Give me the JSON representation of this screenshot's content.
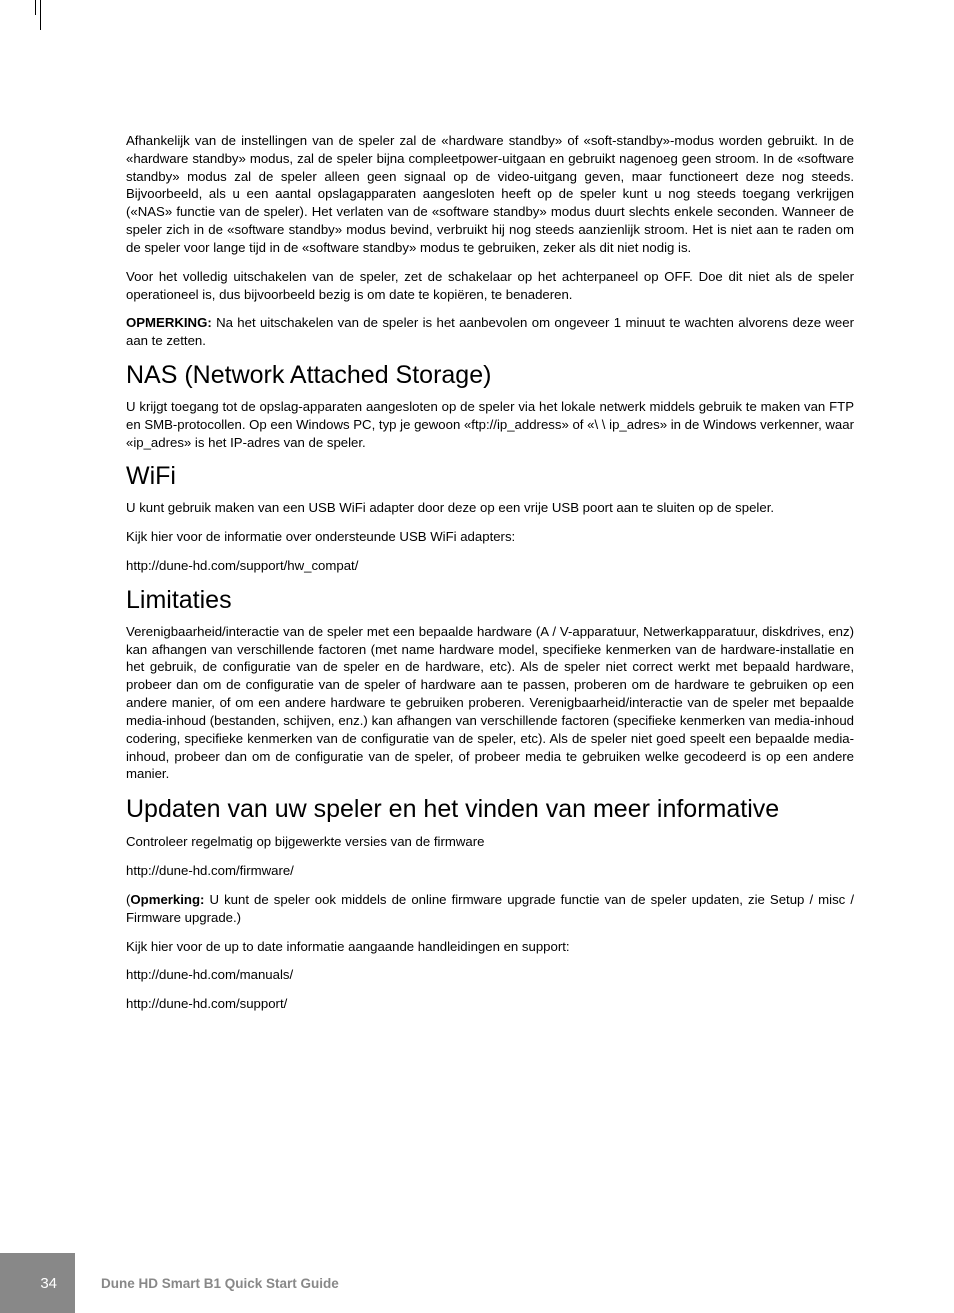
{
  "body": {
    "p1": "Afhankelijk van de instellingen van de speler zal de «hardware standby» of «soft-standby»-modus worden gebruikt. In de «hardware standby» modus, zal de speler bijna compleetpower-uitgaan en gebruikt nagenoeg geen stroom. In de «software standby» modus zal de speler alleen geen signaal op de video-uitgang geven, maar functioneert deze nog steeds. Bijvoorbeeld, als u een aantal opslagapparaten aangesloten heeft op de speler kunt u nog steeds toegang verkrijgen («NAS» functie van de speler). Het verlaten van de «software standby» modus duurt slechts enkele seconden. Wanneer de speler zich in de «software standby» modus bevind, verbruikt hij nog steeds aanzienlijk stroom. Het is niet aan te raden om de speler voor lange tijd in de «software standby» modus te gebruiken, zeker als dit niet nodig is.",
    "p2": "Voor het volledig uitschakelen van de speler, zet de schakelaar op het achterpaneel op OFF. Doe dit niet als de speler operationeel is, dus bijvoorbeeld bezig is om date te kopiëren, te benaderen.",
    "p3_label": "OPMERKING:",
    "p3_rest": " Na het uitschakelen van de speler is het aanbevolen om ongeveer 1 minuut te wachten alvorens deze weer aan te zetten.",
    "h_nas": "NAS (Network Attached Storage)",
    "p_nas": "U krijgt toegang tot de opslag-apparaten aangesloten op de speler via het lokale netwerk middels gebruik te maken van FTP en SMB-protocollen. Op een Windows PC, typ je gewoon «ftp://ip_address» of «\\ \\ ip_adres» in de Windows verkenner, waar «ip_adres» is het IP-adres van de speler.",
    "h_wifi": "WiFi",
    "p_wifi1": "U kunt gebruik maken van een USB WiFi adapter door deze op een vrije USB poort aan te sluiten op de speler.",
    "p_wifi2": "Kijk hier voor de informatie over ondersteunde USB WiFi adapters:",
    "p_wifi3": "http://dune-hd.com/support/hw_compat/",
    "h_lim": "Limitaties",
    "p_lim": "Verenigbaarheid/interactie van de speler met een bepaalde hardware (A / V-apparatuur, Netwerkapparatuur, diskdrives, enz) kan afhangen van verschillende factoren (met name hardware model, specifieke kenmerken van de hardware-installatie en het gebruik, de configuratie van de speler en de hardware, etc). Als de speler niet correct werkt met bepaald hardware, probeer dan om de configuratie van de speler of hardware aan te passen, proberen om de hardware te gebruiken op een andere manier, of om een andere hardware te gebruiken proberen. Verenigbaarheid/interactie van de speler met bepaalde media-inhoud (bestanden, schijven, enz.) kan afhangen van verschillende factoren (specifieke kenmerken van media-inhoud codering, specifieke kenmerken van de configuratie van de speler, etc). Als de speler niet goed speelt een bepaalde media-inhoud, probeer dan om de configuratie van de speler, of probeer media te gebruiken welke gecodeerd is op een andere manier.",
    "h_upd": "Updaten van uw speler en het vinden van meer informative",
    "p_upd1": "Controleer regelmatig op bijgewerkte versies van de firmware",
    "p_upd2": "http://dune-hd.com/firmware/",
    "p_upd3_open": "(",
    "p_upd3_label": "Opmerking:",
    "p_upd3_rest": " U kunt de speler ook middels de online firmware upgrade functie van de speler updaten, zie Setup / misc / Firmware upgrade.)",
    "p_upd4": "Kijk hier voor de up to date informatie aangaande handleidingen en support:",
    "p_upd5": "http://dune-hd.com/manuals/",
    "p_upd6": "http://dune-hd.com/support/"
  },
  "footer": {
    "page_num": "34",
    "title": "Dune HD Smart B1 Quick Start Guide"
  }
}
